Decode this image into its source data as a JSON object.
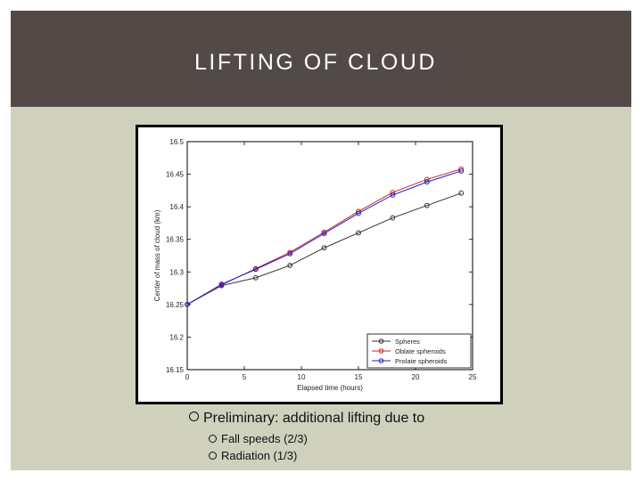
{
  "slide": {
    "title": "LIFTING OF CLOUD",
    "bullets": {
      "main": "Preliminary: additional lifting due to",
      "sub": [
        "Fall speeds (2/3)",
        "Radiation (1/3)"
      ]
    },
    "colors": {
      "title_bar": "#534a48",
      "background": "#cfd1bd",
      "title_text": "#ffffff"
    }
  },
  "chart_data": {
    "type": "line",
    "title": "",
    "xlabel": "Elapsed time (hours)",
    "ylabel": "Center of mass of cloud (km)",
    "xlim": [
      0,
      25
    ],
    "ylim": [
      16.15,
      16.5
    ],
    "xticks": [
      0,
      5,
      10,
      15,
      20,
      25
    ],
    "xtick_labels": [
      "0",
      "5",
      "10",
      "15",
      "20",
      "25"
    ],
    "yticks": [
      16.15,
      16.2,
      16.25,
      16.3,
      16.35,
      16.4,
      16.45,
      16.5
    ],
    "ytick_labels": [
      "16.15",
      "16.2",
      "16.25",
      "16.3",
      "16.35",
      "16.4",
      "16.45",
      "16.5"
    ],
    "grid": false,
    "legend_position": "bottom-right",
    "x": [
      0,
      3,
      6,
      9,
      12,
      15,
      18,
      21,
      24
    ],
    "series": [
      {
        "name": "Spheres",
        "color": "#333333",
        "marker": "circle-open",
        "values": [
          16.25,
          16.279,
          16.291,
          16.31,
          16.337,
          16.36,
          16.383,
          16.402,
          16.421
        ]
      },
      {
        "name": "Oblate spheroids",
        "color": "#cc2222",
        "marker": "circle-open",
        "values": [
          16.25,
          16.28,
          16.305,
          16.33,
          16.361,
          16.393,
          16.422,
          16.442,
          16.458
        ]
      },
      {
        "name": "Prolate spheroids",
        "color": "#2222cc",
        "marker": "circle-open",
        "values": [
          16.25,
          16.281,
          16.304,
          16.328,
          16.359,
          16.39,
          16.418,
          16.438,
          16.455
        ]
      }
    ]
  }
}
